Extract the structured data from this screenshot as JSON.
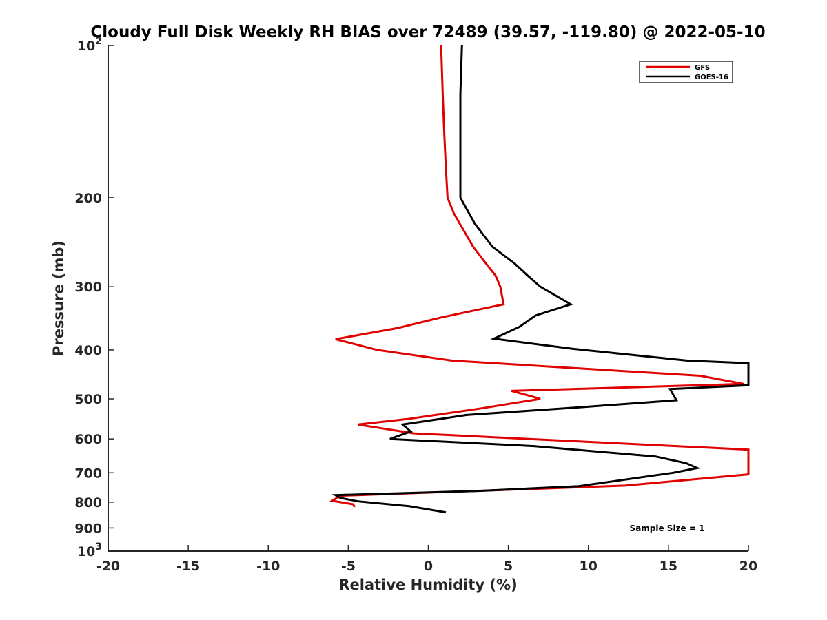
{
  "chart_data": {
    "type": "line",
    "title": "Cloudy Full Disk Weekly RH BIAS over 72489 (39.57, -119.80) @ 2022-05-10",
    "xlabel": "Relative Humidity (%)",
    "ylabel": "Pressure (mb)",
    "xlim": [
      -20,
      20
    ],
    "ylim": [
      100,
      1000
    ],
    "y_scale": "log",
    "y_reversed": true,
    "grid": false,
    "legend_position": "top-right",
    "x_ticks": [
      {
        "value": -20,
        "label": "-20"
      },
      {
        "value": -15,
        "label": "-15"
      },
      {
        "value": -10,
        "label": "-10"
      },
      {
        "value": -5,
        "label": "-5"
      },
      {
        "value": 0,
        "label": "0"
      },
      {
        "value": 5,
        "label": "5"
      },
      {
        "value": 10,
        "label": "10"
      },
      {
        "value": 15,
        "label": "15"
      },
      {
        "value": 20,
        "label": "20"
      }
    ],
    "y_ticks": [
      {
        "value": 100,
        "base": "10",
        "exp": "2"
      },
      {
        "value": 200,
        "base": "200",
        "exp": ""
      },
      {
        "value": 300,
        "base": "300",
        "exp": ""
      },
      {
        "value": 400,
        "base": "400",
        "exp": ""
      },
      {
        "value": 500,
        "base": "500",
        "exp": ""
      },
      {
        "value": 600,
        "base": "600",
        "exp": ""
      },
      {
        "value": 700,
        "base": "700",
        "exp": ""
      },
      {
        "value": 800,
        "base": "800",
        "exp": ""
      },
      {
        "value": 900,
        "base": "900",
        "exp": ""
      },
      {
        "value": 1000,
        "base": "10",
        "exp": "3"
      }
    ],
    "series": [
      {
        "name": "GFS",
        "color": "#e00000",
        "points": [
          [
            0.8,
            100
          ],
          [
            0.9,
            125
          ],
          [
            1.0,
            150
          ],
          [
            1.1,
            175
          ],
          [
            1.2,
            200
          ],
          [
            1.6,
            215
          ],
          [
            2.8,
            250
          ],
          [
            3.8,
            275
          ],
          [
            4.2,
            285
          ],
          [
            4.5,
            300
          ],
          [
            4.7,
            325
          ],
          [
            0.8,
            345
          ],
          [
            -1.9,
            362
          ],
          [
            -5.8,
            381
          ],
          [
            -3.2,
            400
          ],
          [
            1.5,
            420
          ],
          [
            17.0,
            450
          ],
          [
            19.7,
            467
          ],
          [
            5.2,
            482
          ],
          [
            7.0,
            500
          ],
          [
            3.3,
            522
          ],
          [
            -1.3,
            548
          ],
          [
            -4.4,
            562
          ],
          [
            -0.9,
            585
          ],
          [
            20.0,
            630
          ],
          [
            20.0,
            705
          ],
          [
            12.3,
            742
          ],
          [
            -5.5,
            777
          ],
          [
            -6.0,
            795
          ],
          [
            -4.7,
            808
          ],
          [
            -4.6,
            818
          ]
        ]
      },
      {
        "name": "GOES-16",
        "color": "#000000",
        "points": [
          [
            2.1,
            100
          ],
          [
            2.0,
            125
          ],
          [
            2.0,
            150
          ],
          [
            2.0,
            175
          ],
          [
            2.0,
            200
          ],
          [
            2.9,
            225
          ],
          [
            4.0,
            250
          ],
          [
            5.4,
            270
          ],
          [
            6.2,
            285
          ],
          [
            7.0,
            300
          ],
          [
            8.9,
            325
          ],
          [
            6.7,
            342
          ],
          [
            5.7,
            360
          ],
          [
            4.1,
            380
          ],
          [
            9.0,
            398
          ],
          [
            16.2,
            420
          ],
          [
            20.0,
            425
          ],
          [
            20.0,
            470
          ],
          [
            15.1,
            478
          ],
          [
            15.5,
            503
          ],
          [
            9.3,
            520
          ],
          [
            2.4,
            538
          ],
          [
            -1.6,
            562
          ],
          [
            -1.1,
            580
          ],
          [
            -2.4,
            600
          ],
          [
            6.6,
            620
          ],
          [
            14.2,
            650
          ],
          [
            16.1,
            670
          ],
          [
            16.8,
            685
          ],
          [
            15.3,
            700
          ],
          [
            9.4,
            744
          ],
          [
            3.3,
            760
          ],
          [
            -5.8,
            775
          ],
          [
            -5.5,
            785
          ],
          [
            -4.4,
            797
          ],
          [
            -1.2,
            815
          ],
          [
            1.1,
            838
          ]
        ]
      }
    ],
    "annotations": [
      {
        "text": "Sample Size = 1"
      }
    ]
  }
}
